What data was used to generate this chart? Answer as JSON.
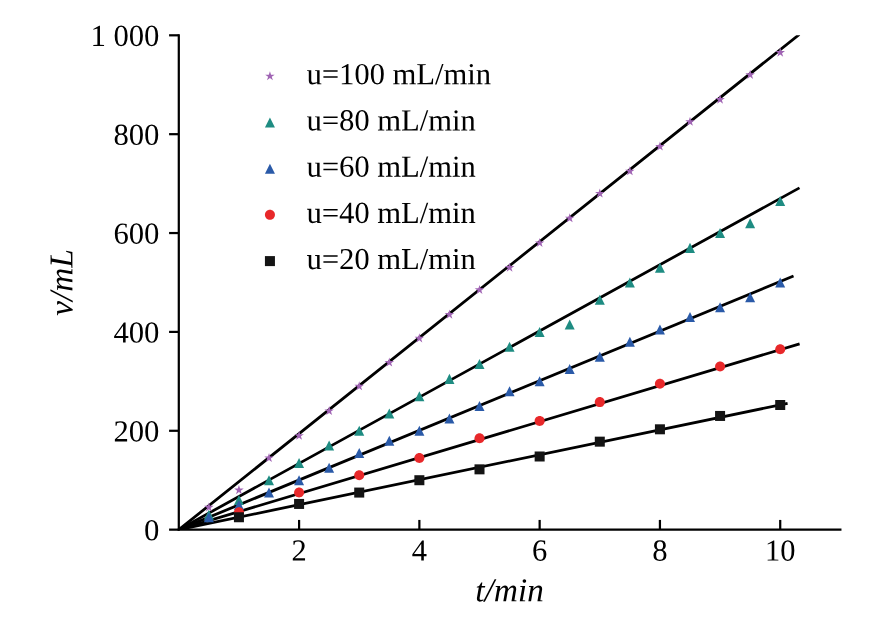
{
  "chart_data": {
    "type": "scatter",
    "xlabel": "t/min",
    "ylabel": "v/mL",
    "xlim": [
      0,
      11
    ],
    "ylim": [
      0,
      1000
    ],
    "xticks": [
      2,
      4,
      6,
      8,
      10
    ],
    "yticks": [
      0,
      200,
      400,
      600,
      800,
      {
        "value": 1000,
        "label": "1 000"
      }
    ],
    "grid": false,
    "legend": "top left",
    "series": [
      {
        "name": "u=100 mL/min",
        "color": "#a064b4",
        "marker": "star",
        "x": [
          0.5,
          1,
          1.5,
          2,
          2.5,
          3,
          3.5,
          4,
          4.5,
          5,
          5.5,
          6,
          6.5,
          7,
          7.5,
          8,
          8.5,
          9,
          9.5,
          10
        ],
        "values": [
          45,
          80,
          145,
          190,
          240,
          290,
          338,
          387,
          435,
          485,
          530,
          580,
          630,
          680,
          725,
          775,
          825,
          870,
          920,
          965
        ]
      },
      {
        "name": "u=80 mL/min",
        "color": "#1e8c82",
        "marker": "triangle",
        "x": [
          0.5,
          1,
          1.5,
          2,
          2.5,
          3,
          3.5,
          4,
          4.5,
          5,
          5.5,
          6,
          6.5,
          7,
          7.5,
          8,
          8.5,
          9,
          9.5,
          10
        ],
        "values": [
          30,
          60,
          100,
          135,
          170,
          200,
          235,
          270,
          305,
          335,
          370,
          400,
          415,
          465,
          500,
          530,
          570,
          600,
          620,
          665
        ]
      },
      {
        "name": "u=60 mL/min",
        "color": "#2a5aa8",
        "marker": "triangle",
        "x": [
          0.5,
          1,
          1.5,
          2,
          2.5,
          3,
          3.5,
          4,
          4.5,
          5,
          5.5,
          6,
          6.5,
          7,
          7.5,
          8,
          8.5,
          9,
          9.5,
          10
        ],
        "values": [
          25,
          50,
          75,
          100,
          125,
          155,
          180,
          200,
          225,
          250,
          280,
          300,
          325,
          350,
          380,
          405,
          430,
          450,
          470,
          500
        ]
      },
      {
        "name": "u=40 mL/min",
        "color": "#e8282a",
        "marker": "circle",
        "x": [
          1,
          2,
          3,
          4,
          5,
          6,
          7,
          8,
          9,
          10
        ],
        "values": [
          35,
          75,
          110,
          145,
          185,
          220,
          258,
          295,
          330,
          365
        ]
      },
      {
        "name": "u=20 mL/min",
        "color": "#141414",
        "marker": "square",
        "x": [
          1,
          2,
          3,
          4,
          5,
          6,
          7,
          8,
          9,
          10
        ],
        "values": [
          25,
          52,
          75,
          100,
          122,
          148,
          178,
          203,
          230,
          252
        ]
      },
      {
        "type": "line",
        "color": "#000000",
        "marker": "none",
        "x": [
          0,
          10.3
        ],
        "values": [
          0,
          1000
        ]
      },
      {
        "type": "line",
        "color": "#000000",
        "marker": "none",
        "x": [
          0,
          10.3
        ],
        "values": [
          0,
          690
        ]
      },
      {
        "type": "line",
        "color": "#000000",
        "marker": "none",
        "x": [
          0,
          10.2
        ],
        "values": [
          0,
          512
        ]
      },
      {
        "type": "line",
        "color": "#000000",
        "marker": "none",
        "x": [
          0,
          10.3
        ],
        "values": [
          0,
          375
        ]
      },
      {
        "type": "line",
        "color": "#000000",
        "marker": "none",
        "x": [
          0,
          10.1
        ],
        "values": [
          0,
          255
        ]
      }
    ]
  }
}
